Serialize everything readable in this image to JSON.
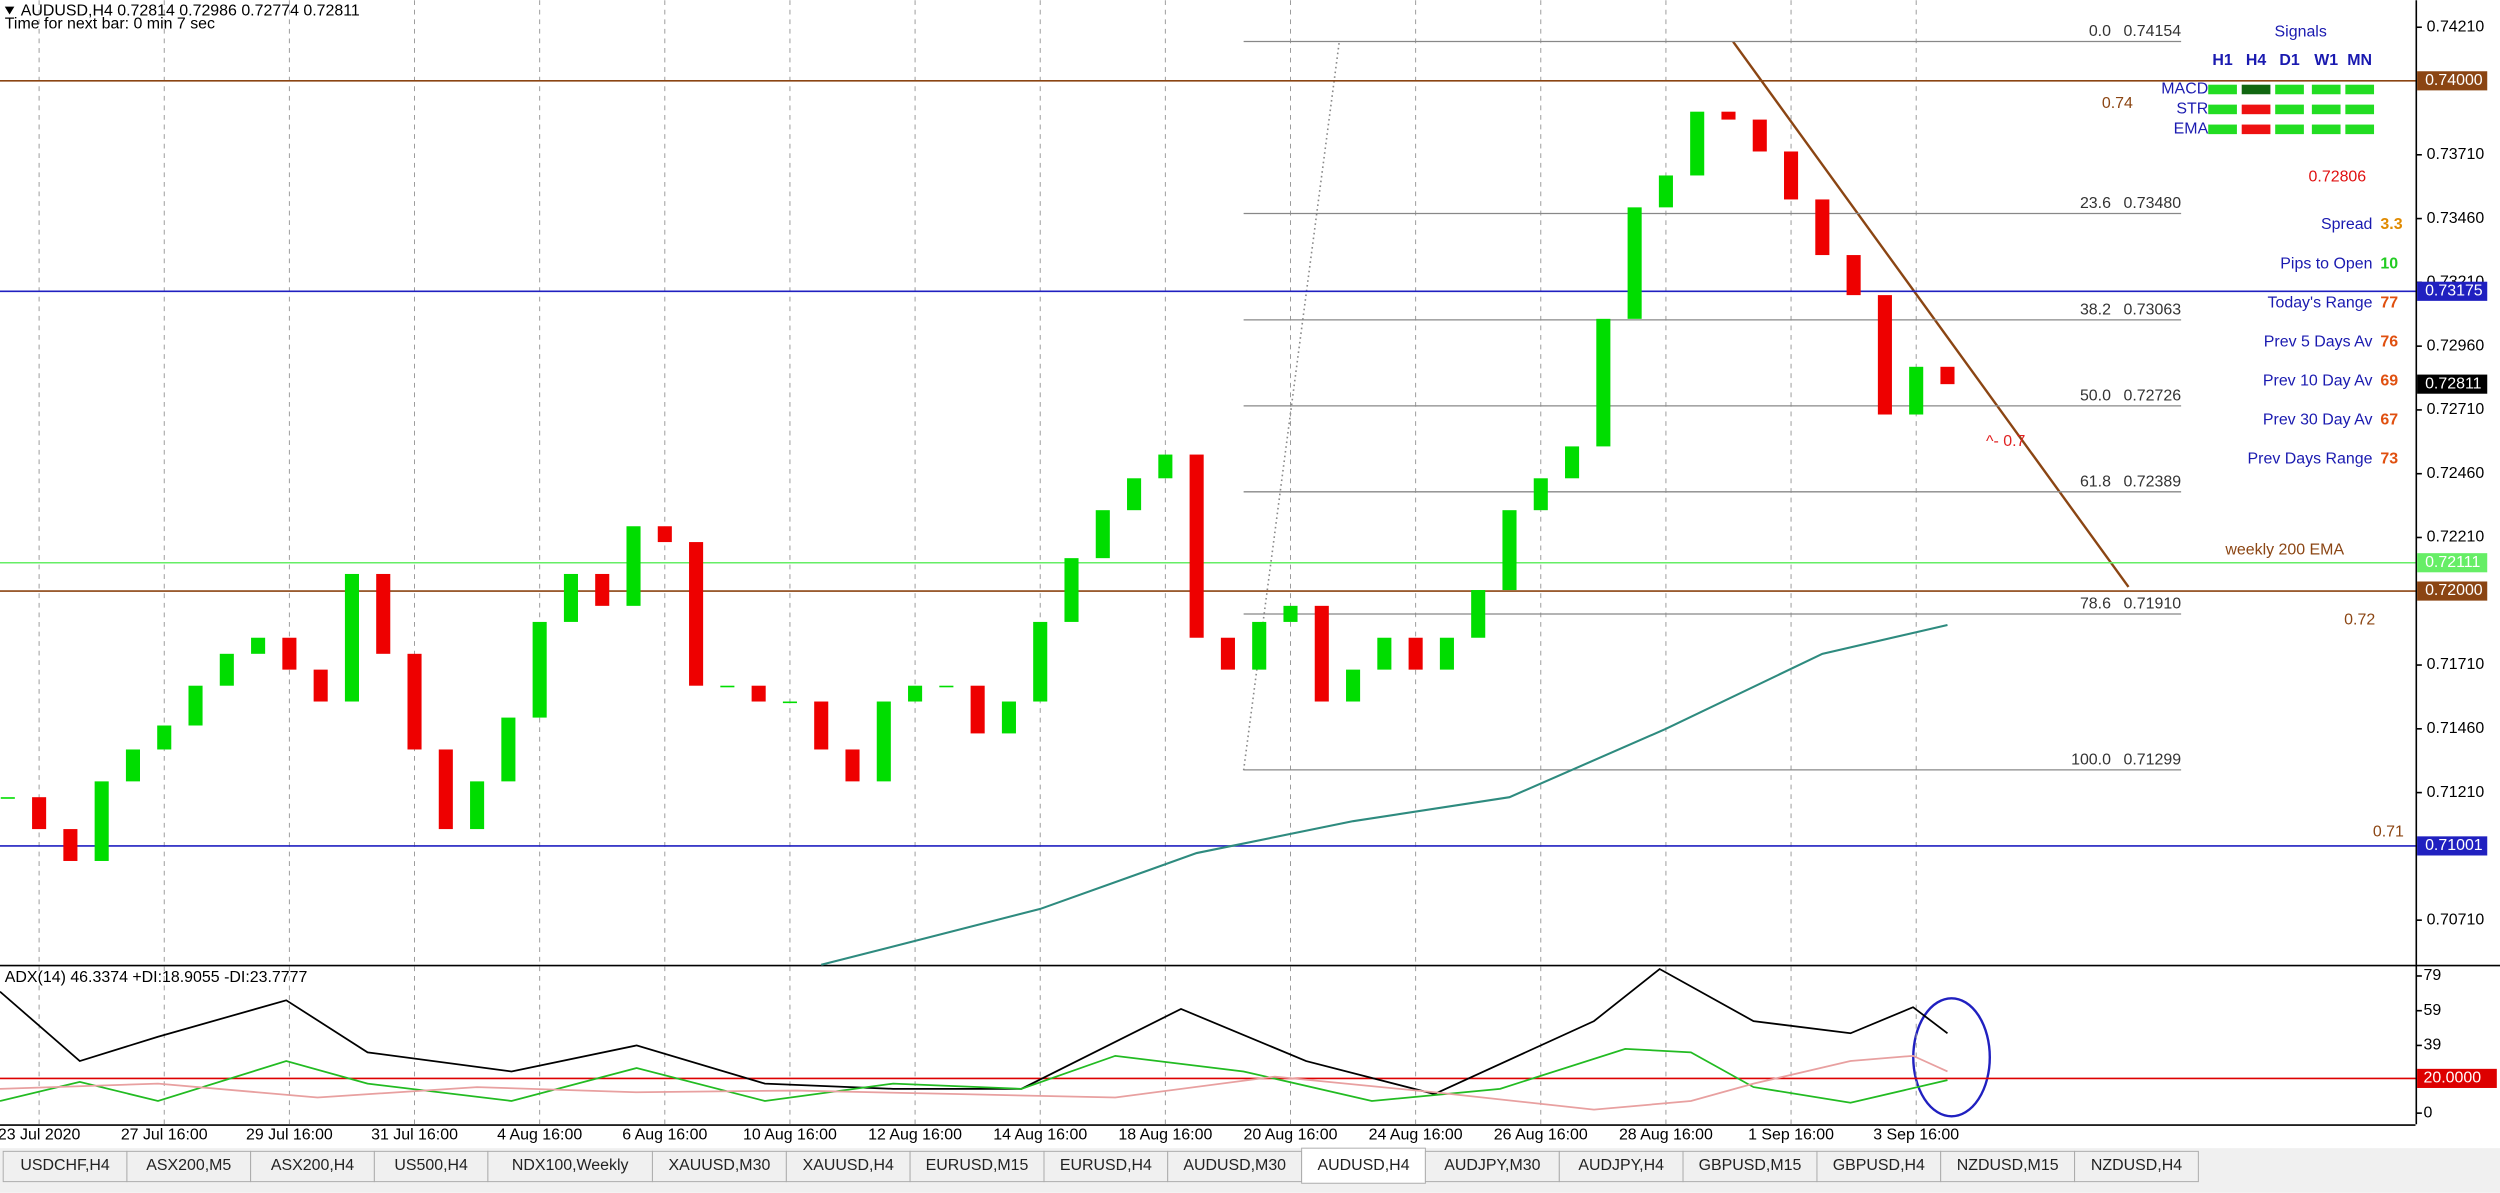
{
  "header": {
    "symbol_line": "AUDUSD,H4  0.72814 0.72986 0.72774 0.72811",
    "timer": "Time for next bar: 0 min 7 sec"
  },
  "chart_data": [
    {
      "type": "candlestick",
      "values": [
        0.71192,
        0.71067,
        0.70942,
        0.71254,
        0.71379,
        0.71473,
        0.71629,
        0.71754,
        0.71817,
        0.71692,
        0.71567,
        0.72067,
        0.71754,
        0.71379,
        0.71067,
        0.71254,
        0.71504,
        0.71879,
        0.72067,
        0.71942,
        0.72254,
        0.72192,
        0.71629,
        0.71629,
        0.71567,
        0.71567,
        0.71379,
        0.71254,
        0.71567,
        0.71629,
        0.71629,
        0.71442,
        0.71567,
        0.71879,
        0.72129,
        0.72317,
        0.72442,
        0.72535,
        0.71817,
        0.71692,
        0.71879,
        0.71942,
        0.71567,
        0.71692,
        0.71817,
        0.71692,
        0.71817,
        0.72004,
        0.72317,
        0.72442,
        0.72567,
        0.73067,
        0.73504,
        0.73629,
        0.73879,
        0.73848,
        0.73723,
        0.73535,
        0.73317,
        0.7316,
        0.72692,
        0.72879,
        0.72811
      ],
      "up_color": "#00dd00",
      "down_color": "#ee0000",
      "xlim": [
        -0.25,
        76.96
      ],
      "ylim": [
        0.70535,
        0.74316
      ],
      "grid": true,
      "yticks": [
        {
          "value": 0.7421,
          "label": "0.74210"
        },
        {
          "value": 0.7371,
          "label": "0.73710"
        },
        {
          "value": 0.7346,
          "label": "0.73460"
        },
        {
          "value": 0.7321,
          "label": "0.73210"
        },
        {
          "value": 0.7296,
          "label": "0.72960"
        },
        {
          "value": 0.7271,
          "label": "0.72710"
        },
        {
          "value": 0.7246,
          "label": "0.72460"
        },
        {
          "value": 0.7221,
          "label": "0.72210"
        },
        {
          "value": 0.7171,
          "label": "0.71710"
        },
        {
          "value": 0.7146,
          "label": "0.71460"
        },
        {
          "value": 0.7121,
          "label": "0.71210"
        },
        {
          "value": 0.7071,
          "label": "0.70710"
        }
      ],
      "xticks": [
        {
          "value": 1,
          "label": "23 Jul 2020"
        },
        {
          "value": 5,
          "label": "27 Jul 16:00"
        },
        {
          "value": 9,
          "label": "29 Jul 16:00"
        },
        {
          "value": 13,
          "label": "31 Jul 16:00"
        },
        {
          "value": 17,
          "label": "4 Aug 16:00"
        },
        {
          "value": 21,
          "label": "6 Aug 16:00"
        },
        {
          "value": 25,
          "label": "10 Aug 16:00"
        },
        {
          "value": 29,
          "label": "12 Aug 16:00"
        },
        {
          "value": 33,
          "label": "14 Aug 16:00"
        },
        {
          "value": 37,
          "label": "18 Aug 16:00"
        },
        {
          "value": 41,
          "label": "20 Aug 16:00"
        },
        {
          "value": 45,
          "label": "24 Aug 16:00"
        },
        {
          "value": 49,
          "label": "26 Aug 16:00"
        },
        {
          "value": 53,
          "label": "28 Aug 16:00"
        },
        {
          "value": 57,
          "label": "1 Sep 16:00"
        },
        {
          "value": 61,
          "label": "3 Sep 16:00"
        }
      ],
      "ema200": {
        "x": [
          26,
          33,
          38,
          43,
          48,
          53,
          58,
          62
        ],
        "values": [
          0.70535,
          0.70754,
          0.70973,
          0.71098,
          0.71192,
          0.7146,
          0.71754,
          0.71867
        ],
        "color": "#2e8b7f"
      },
      "levels": [
        {
          "value": 0.74,
          "label": "0.74000",
          "color": "#8b4513"
        },
        {
          "value": 0.73175,
          "label": "0.73175",
          "color": "#2020c0"
        },
        {
          "value": 0.72111,
          "label": "0.72111",
          "color": "#66ee66"
        },
        {
          "value": 0.72,
          "label": "0.72000",
          "color": "#8b4513"
        },
        {
          "value": 0.71001,
          "label": "0.71001",
          "color": "#2020c0"
        }
      ],
      "current_price": {
        "value": 0.72811,
        "label": "0.72811"
      },
      "fibonacci": {
        "color": "#888888",
        "levels": [
          {
            "ratio": "0.0",
            "price": 0.74154
          },
          {
            "ratio": "23.6",
            "price": {
              "value": 0.7348,
              "label": "0.73480"
            }
          },
          {
            "ratio": "38.2",
            "price": 0.73063
          },
          {
            "ratio": "50.0",
            "price": 0.72726
          },
          {
            "ratio": "61.8",
            "price": 0.72389
          },
          {
            "ratio": "78.6",
            "price": {
              "value": 0.7191,
              "label": "0.71910"
            }
          },
          {
            "ratio": "100.0",
            "price": 0.71299
          }
        ]
      },
      "annotations": [
        {
          "text": "0.74",
          "color": "#8b4513"
        },
        {
          "text": "weekly 200 EMA",
          "color": "#8b4513"
        },
        {
          "text": "0.72",
          "color": "#8b4513"
        },
        {
          "text": "0.71",
          "color": "#8b4513"
        },
        {
          "text": "^- 0.7",
          "color": "#e02020"
        }
      ]
    },
    {
      "type": "line",
      "title": "ADX(14) 46.3374 +DI:18.9055 -DI:23.7777",
      "xlim": [
        -0.25,
        76.96
      ],
      "ylim": [
        -6.4,
        83.6
      ],
      "yticks": [
        79,
        59,
        39,
        0
      ],
      "level": {
        "value": 20,
        "label": "20.0000",
        "color": "#dd0000"
      },
      "series": [
        {
          "color": "#000000",
          "x": [
            -0.25,
            2.3,
            4.8,
            8.9,
            11.5,
            16.1,
            20.1,
            24.2,
            28.3,
            32.4,
            37.5,
            41.5,
            45.6,
            50.7,
            52.8,
            55.8,
            58.9,
            60.9,
            62.0
          ],
          "values": [
            70,
            30,
            44,
            65,
            35,
            24,
            39,
            17,
            14,
            14,
            60,
            30,
            11,
            53,
            83,
            53,
            46,
            61,
            46
          ]
        },
        {
          "color": "#22bb22",
          "x": [
            -0.25,
            2.3,
            4.8,
            8.9,
            11.5,
            16.1,
            20.1,
            24.2,
            28.3,
            32.4,
            35.4,
            39.5,
            43.6,
            47.7,
            51.7,
            53.8,
            55.8,
            58.9,
            62.0
          ],
          "values": [
            7,
            18,
            7,
            30,
            17,
            7,
            26,
            7,
            17,
            14,
            33,
            24,
            7,
            14,
            37,
            35,
            15,
            6,
            19
          ]
        },
        {
          "color": "#e8a0a0",
          "x": [
            -0.25,
            4.8,
            9.9,
            15.0,
            20.1,
            25.2,
            30.3,
            35.4,
            40.5,
            45.6,
            50.7,
            53.8,
            55.8,
            58.9,
            60.9,
            62.0
          ],
          "values": [
            14,
            17,
            9,
            15,
            12,
            13,
            11,
            9,
            21,
            12,
            2,
            7,
            17,
            30,
            33,
            24
          ]
        }
      ]
    }
  ],
  "signals": {
    "title": "Signals",
    "columns": [
      "H1",
      "H4",
      "D1",
      "W1",
      "MN"
    ],
    "rows": [
      {
        "label": "MACD",
        "colors": [
          "#22dd22",
          "#116611",
          "#22dd22",
          "#22dd22",
          "#22dd22"
        ]
      },
      {
        "label": "STR",
        "colors": [
          "#22dd22",
          "#ee1111",
          "#22dd22",
          "#22dd22",
          "#22dd22"
        ]
      },
      {
        "label": "EMA",
        "colors": [
          "#22dd22",
          "#ee1111",
          "#22dd22",
          "#22dd22",
          "#22dd22"
        ]
      }
    ],
    "price": "0.72806"
  },
  "stats": [
    {
      "label": "Spread",
      "value": "3.3",
      "color": "#e08a00"
    },
    {
      "label": "Pips to Open",
      "value": "10",
      "color": "#22cc22"
    },
    {
      "label": "Today's Range",
      "value": "77",
      "color": "#e05010"
    },
    {
      "label": "Prev 5 Days Av",
      "value": "76",
      "color": "#e05010"
    },
    {
      "label": "Prev 10 Day Av",
      "value": "69",
      "color": "#e05010"
    },
    {
      "label": "Prev 30 Day Av",
      "value": "67",
      "color": "#e05010"
    },
    {
      "label": "Prev Days Range",
      "value": "73",
      "color": "#e05010"
    }
  ],
  "tabs": {
    "items": [
      "USDCHF,H4",
      "ASX200,M5",
      "ASX200,H4",
      "US500,H4",
      "NDX100,Weekly",
      "XAUUSD,M30",
      "XAUUSD,H4",
      "EURUSD,M15",
      "EURUSD,H4",
      "AUDUSD,M30",
      "AUDUSD,H4",
      "AUDJPY,M30",
      "AUDJPY,H4",
      "GBPUSD,M15",
      "GBPUSD,H4",
      "NZDUSD,M15",
      "NZDUSD,H4"
    ],
    "active": 10
  }
}
